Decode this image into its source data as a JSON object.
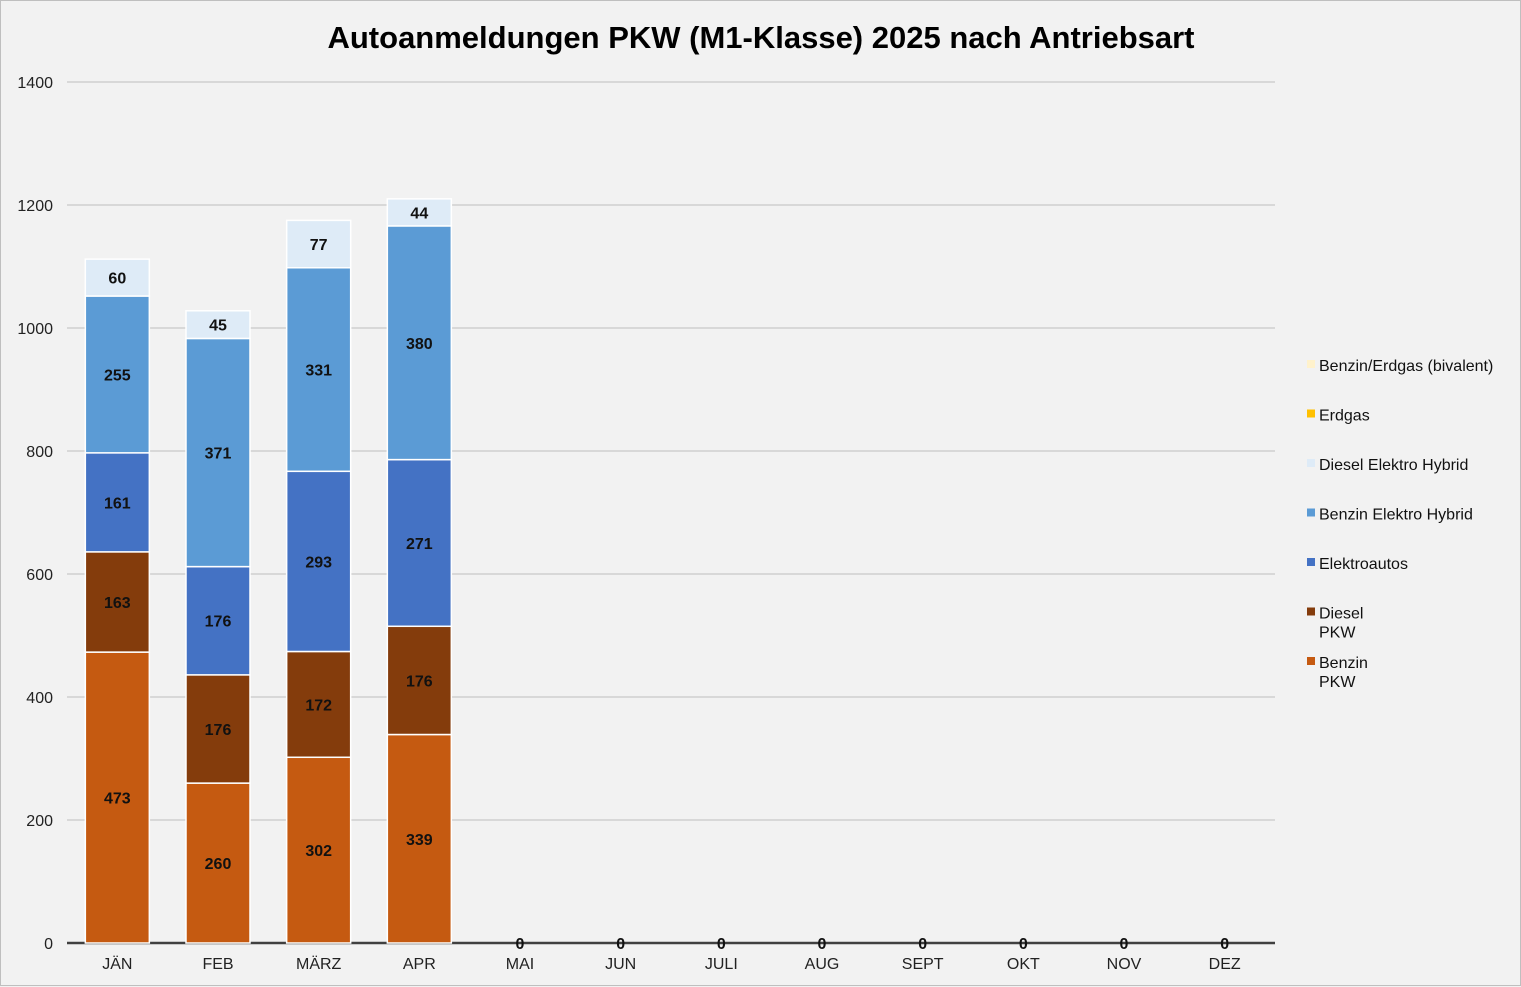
{
  "chart_data": {
    "type": "bar",
    "stacked": true,
    "title": "Autoanmeldungen PKW (M1-Klasse) 2025 nach Antriebsart",
    "xlabel": "",
    "ylabel": "",
    "ylim": [
      0,
      1400
    ],
    "yticks": [
      0,
      200,
      400,
      600,
      800,
      1000,
      1200,
      1400
    ],
    "grid": true,
    "legend_position": "right",
    "categories": [
      "JÄN",
      "FEB",
      "MÄRZ",
      "APR",
      "MAI",
      "JUN",
      "JULI",
      "AUG",
      "SEPT",
      "OKT",
      "NOV",
      "DEZ"
    ],
    "series": [
      {
        "name": [
          "Benzin",
          "PKW"
        ],
        "color": "#c55a11",
        "values": [
          473,
          260,
          302,
          339,
          0,
          0,
          0,
          0,
          0,
          0,
          0,
          0
        ]
      },
      {
        "name": [
          "Diesel",
          "PKW"
        ],
        "color": "#843c0c",
        "values": [
          163,
          176,
          172,
          176,
          0,
          0,
          0,
          0,
          0,
          0,
          0,
          0
        ]
      },
      {
        "name": [
          "Elektroautos"
        ],
        "color": "#4472c4",
        "values": [
          161,
          176,
          293,
          271,
          0,
          0,
          0,
          0,
          0,
          0,
          0,
          0
        ]
      },
      {
        "name": [
          "Benzin Elektro Hybrid"
        ],
        "color": "#5b9bd5",
        "values": [
          255,
          371,
          331,
          380,
          0,
          0,
          0,
          0,
          0,
          0,
          0,
          0
        ]
      },
      {
        "name": [
          "Diesel Elektro Hybrid"
        ],
        "color": "#deebf7",
        "values": [
          60,
          45,
          77,
          44,
          0,
          0,
          0,
          0,
          0,
          0,
          0,
          0
        ]
      },
      {
        "name": [
          "Erdgas"
        ],
        "color": "#ffc000",
        "values": [
          0,
          0,
          0,
          0,
          0,
          0,
          0,
          0,
          0,
          0,
          0,
          0
        ]
      },
      {
        "name": [
          "Benzin/Erdgas (bivalent)"
        ],
        "color": "#fff2cc",
        "values": [
          0,
          0,
          0,
          0,
          0,
          0,
          0,
          0,
          0,
          0,
          0,
          0
        ]
      }
    ],
    "data_labels": [
      {
        "category": "JÄN",
        "labels": [
          "473",
          "163",
          "161",
          "255",
          "60"
        ]
      },
      {
        "category": "FEB",
        "labels": [
          "260",
          "176",
          "176",
          "371",
          "45"
        ]
      },
      {
        "category": "MÄRZ",
        "labels": [
          "302",
          "172",
          "293",
          "331",
          "77"
        ]
      },
      {
        "category": "APR",
        "labels": [
          "339",
          "176",
          "271",
          "380",
          "44"
        ]
      },
      {
        "category": "MAI",
        "labels": [
          "0"
        ]
      },
      {
        "category": "JUN",
        "labels": [
          "0"
        ]
      },
      {
        "category": "JULI",
        "labels": [
          "0"
        ]
      },
      {
        "category": "AUG",
        "labels": [
          "0"
        ]
      },
      {
        "category": "SEPT",
        "labels": [
          "0"
        ]
      },
      {
        "category": "OKT",
        "labels": [
          "0"
        ]
      },
      {
        "category": "NOV",
        "labels": [
          "0"
        ]
      },
      {
        "category": "DEZ",
        "labels": [
          "0"
        ]
      }
    ]
  }
}
